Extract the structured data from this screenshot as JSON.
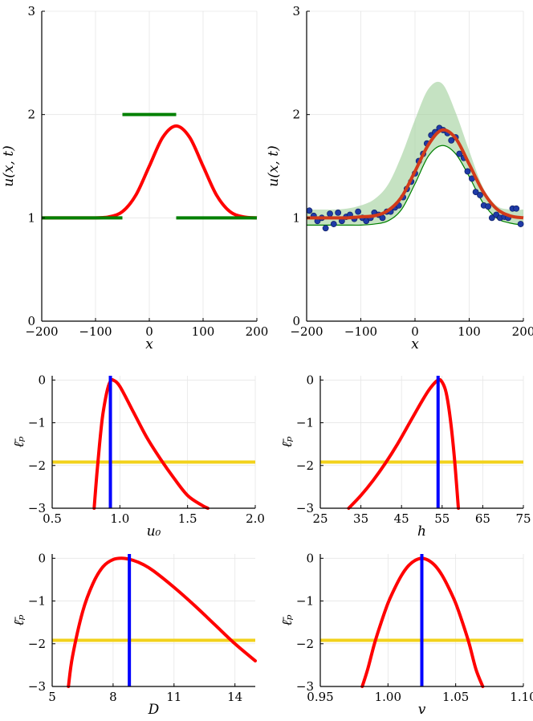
{
  "chart_data": [
    {
      "type": "line",
      "xlabel": "x",
      "ylabel": "u(x, t)",
      "xlim": [
        -200,
        200
      ],
      "ylim": [
        0,
        3
      ],
      "xticks": [
        -200,
        -100,
        0,
        100,
        200
      ],
      "yticks": [
        0,
        1,
        2,
        3
      ],
      "grid": true,
      "series": [
        {
          "color": "#ff0000",
          "x": [
            -200,
            -175,
            -150,
            -125,
            -100,
            -75,
            -50,
            -25,
            0,
            25,
            50,
            75,
            100,
            125,
            150,
            175,
            200
          ],
          "y": [
            1.0,
            1.0,
            1.0,
            1.0,
            1.0,
            1.01,
            1.06,
            1.22,
            1.5,
            1.78,
            1.89,
            1.78,
            1.5,
            1.22,
            1.06,
            1.01,
            1.0
          ]
        },
        {
          "color": "#008000",
          "segments": [
            [
              [
                -200,
                1
              ],
              [
                -50,
                1
              ]
            ],
            [
              [
                -50,
                2
              ],
              [
                50,
                2
              ]
            ],
            [
              [
                50,
                1
              ],
              [
                200,
                1
              ]
            ]
          ]
        }
      ]
    },
    {
      "type": "scatter",
      "xlabel": "x",
      "ylabel": "u(x, t)",
      "xlim": [
        -200,
        200
      ],
      "ylim": [
        0,
        3
      ],
      "xticks": [
        -200,
        -100,
        0,
        100,
        200
      ],
      "yticks": [
        0,
        1,
        2,
        3
      ],
      "grid": true,
      "points": {
        "color": "#1f3aa6",
        "x": [
          -195,
          -187,
          -180,
          -172,
          -165,
          -157,
          -150,
          -142,
          -135,
          -127,
          -120,
          -112,
          -105,
          -97,
          -90,
          -82,
          -75,
          -67,
          -60,
          -52,
          -45,
          -37,
          -30,
          -22,
          -15,
          -7,
          0,
          7,
          15,
          22,
          30,
          37,
          45,
          52,
          60,
          67,
          75,
          82,
          90,
          97,
          105,
          112,
          120,
          127,
          135,
          142,
          150,
          157,
          165,
          172,
          180,
          187,
          195
        ],
        "y": [
          1.07,
          1.02,
          0.97,
          1.0,
          0.9,
          1.04,
          0.94,
          1.05,
          0.97,
          1.01,
          1.03,
          0.99,
          1.06,
          1.0,
          0.97,
          1.0,
          1.05,
          1.03,
          1.0,
          1.06,
          1.06,
          1.1,
          1.12,
          1.2,
          1.28,
          1.35,
          1.43,
          1.55,
          1.62,
          1.72,
          1.8,
          1.83,
          1.87,
          1.85,
          1.82,
          1.75,
          1.78,
          1.62,
          1.58,
          1.45,
          1.38,
          1.25,
          1.22,
          1.12,
          1.11,
          1.0,
          1.03,
          1.0,
          1.01,
          1.0,
          1.09,
          1.09,
          0.94
        ]
      },
      "fit": {
        "color": "#d23b1a",
        "x": [
          -200,
          -175,
          -150,
          -125,
          -100,
          -75,
          -50,
          -25,
          0,
          25,
          50,
          75,
          100,
          125,
          150,
          175,
          200
        ],
        "y": [
          1.0,
          1.0,
          1.0,
          1.0,
          1.01,
          1.02,
          1.07,
          1.2,
          1.45,
          1.71,
          1.85,
          1.77,
          1.52,
          1.26,
          1.09,
          1.02,
          1.0
        ]
      },
      "band": {
        "color": "#9fcf9a",
        "x": [
          -200,
          -175,
          -150,
          -125,
          -100,
          -75,
          -50,
          -25,
          0,
          25,
          50,
          75,
          100,
          125,
          150,
          175,
          200
        ],
        "upper": [
          1.08,
          1.08,
          1.08,
          1.09,
          1.12,
          1.18,
          1.32,
          1.6,
          1.95,
          2.25,
          2.3,
          2.02,
          1.65,
          1.3,
          1.12,
          1.08,
          1.08
        ],
        "lower": [
          0.93,
          0.93,
          0.93,
          0.93,
          0.93,
          0.94,
          0.97,
          1.08,
          1.33,
          1.6,
          1.7,
          1.62,
          1.4,
          1.15,
          1.0,
          0.95,
          0.93
        ]
      }
    },
    {
      "type": "line",
      "xlabel": "u₀",
      "ylabel": "ℓ̄ₚ",
      "xlim": [
        0.5,
        2.0
      ],
      "ylim": [
        -3,
        0.1
      ],
      "xticks": [
        "0.5",
        "1.0",
        "1.5",
        "2.0"
      ],
      "xtick_values": [
        0.5,
        1.0,
        1.5,
        2.0
      ],
      "yticks": [
        0,
        -1,
        -2,
        -3
      ],
      "grid": true,
      "curve": {
        "color": "#ff0000",
        "x": [
          0.81,
          0.83,
          0.85,
          0.87,
          0.89,
          0.91,
          0.93,
          0.95,
          1.0,
          1.1,
          1.2,
          1.3,
          1.4,
          1.5,
          1.6,
          1.65
        ],
        "y": [
          -3.0,
          -2.2,
          -1.5,
          -0.9,
          -0.5,
          -0.2,
          -0.03,
          0.0,
          -0.15,
          -0.75,
          -1.35,
          -1.85,
          -2.3,
          -2.7,
          -2.92,
          -3.0
        ]
      },
      "mle": {
        "color": "#0000ff",
        "value": 0.93
      },
      "threshold": {
        "color": "#f2d21b",
        "value": -1.92
      }
    },
    {
      "type": "line",
      "xlabel": "h",
      "ylabel": "ℓ̄ₚ",
      "xlim": [
        25,
        75
      ],
      "ylim": [
        -3,
        0.1
      ],
      "xticks": [
        "25",
        "35",
        "45",
        "55",
        "65",
        "75"
      ],
      "xtick_values": [
        25,
        35,
        45,
        55,
        65,
        75
      ],
      "yticks": [
        0,
        -1,
        -2,
        -3
      ],
      "grid": true,
      "curve": {
        "color": "#ff0000",
        "x": [
          32,
          35,
          38,
          41,
          44,
          47,
          50,
          52,
          54,
          55,
          56,
          57,
          58,
          59
        ],
        "y": [
          -3.0,
          -2.7,
          -2.35,
          -1.95,
          -1.5,
          -1.0,
          -0.5,
          -0.2,
          0.0,
          -0.05,
          -0.3,
          -0.9,
          -1.8,
          -3.0
        ]
      },
      "mle": {
        "color": "#0000ff",
        "value": 54
      },
      "threshold": {
        "color": "#f2d21b",
        "value": -1.92
      }
    },
    {
      "type": "line",
      "xlabel": "D",
      "ylabel": "ℓ̄ₚ",
      "xlim": [
        5,
        15
      ],
      "ylim": [
        -3,
        0.1
      ],
      "xticks": [
        "5",
        "8",
        "11",
        "14"
      ],
      "xtick_values": [
        5,
        8,
        11,
        14
      ],
      "yticks": [
        0,
        -1,
        -2,
        -3
      ],
      "grid": true,
      "curve": {
        "color": "#ff0000",
        "x": [
          5.8,
          6.0,
          6.5,
          7.0,
          7.5,
          8.0,
          8.5,
          9.0,
          9.5,
          10,
          11,
          12,
          13,
          14,
          15
        ],
        "y": [
          -3.0,
          -2.3,
          -1.25,
          -0.6,
          -0.2,
          -0.03,
          0.0,
          -0.05,
          -0.15,
          -0.3,
          -0.68,
          -1.1,
          -1.55,
          -2.0,
          -2.4
        ]
      },
      "mle": {
        "color": "#0000ff",
        "value": 8.8
      },
      "threshold": {
        "color": "#f2d21b",
        "value": -1.92
      }
    },
    {
      "type": "line",
      "xlabel": "v",
      "ylabel": "ℓ̄ₚ",
      "xlim": [
        0.95,
        1.1
      ],
      "ylim": [
        -3,
        0.1
      ],
      "xticks": [
        "0.95",
        "1.00",
        "1.05",
        "1.10"
      ],
      "xtick_values": [
        0.95,
        1.0,
        1.05,
        1.1
      ],
      "yticks": [
        0,
        -1,
        -2,
        -3
      ],
      "grid": true,
      "curve": {
        "color": "#ff0000",
        "x": [
          0.981,
          0.985,
          0.99,
          0.995,
          1.0,
          1.005,
          1.01,
          1.015,
          1.02,
          1.025,
          1.03,
          1.035,
          1.04,
          1.045,
          1.05,
          1.055,
          1.06,
          1.065,
          1.07
        ],
        "y": [
          -3.0,
          -2.6,
          -2.0,
          -1.5,
          -1.05,
          -0.7,
          -0.4,
          -0.18,
          -0.05,
          0.0,
          -0.05,
          -0.18,
          -0.4,
          -0.7,
          -1.05,
          -1.5,
          -2.0,
          -2.6,
          -3.0
        ]
      },
      "mle": {
        "color": "#0000ff",
        "value": 1.025
      },
      "threshold": {
        "color": "#f2d21b",
        "value": -1.92
      }
    }
  ]
}
